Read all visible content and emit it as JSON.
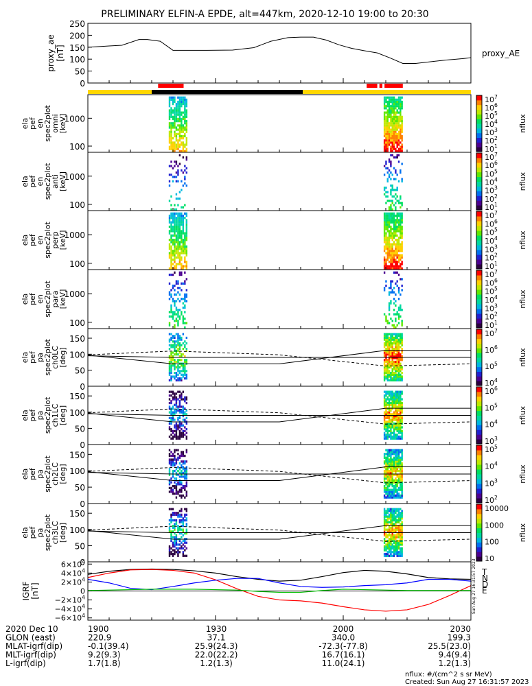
{
  "title": "PRELIMINARY ELFIN-A EPDE, alt=447km, 2020-12-10 19:00 to 20:30",
  "footer": {
    "units": "nflux: #/(cm^2 s sr MeV)",
    "created": "Created: Sun Aug 27 16:31:57 2023",
    "stamp": "Sun Aug 27 16:31:57 2023"
  },
  "colors": {
    "sunlit_bar": "#ffd700",
    "shadow_bar": "#000000",
    "science_zone": "#ff0000",
    "igrf_T": "#000000",
    "igrf_N": "#ff0000",
    "igrf_D": "#0000ff",
    "igrf_E": "#00c000"
  },
  "colorbar_stops": [
    "#2b0040",
    "#4b0090",
    "#2020d0",
    "#0070f0",
    "#00b8e0",
    "#00d8a0",
    "#00e060",
    "#60e800",
    "#c0e800",
    "#ffd000",
    "#ff8000",
    "#ff0000"
  ],
  "time_axis": {
    "tick_labels": [
      "1900",
      "1930",
      "2000",
      "2030"
    ],
    "range_minutes": [
      0,
      90
    ]
  },
  "ephemeris": {
    "rows": [
      {
        "label": "2020 Dec 10",
        "values": [
          "1900",
          "1930",
          "2000",
          "2030"
        ]
      },
      {
        "label": "GLON (east)",
        "values": [
          "220.9",
          "37.1",
          "340.0",
          "199.3"
        ]
      },
      {
        "label": "MLAT-igrf(dip)",
        "values": [
          "-0.1(39.4)",
          "25.9(24.3)",
          "-72.3(-77.8)",
          "25.5(23.0)"
        ]
      },
      {
        "label": "MLT-igrf(dip)",
        "values": [
          "9.2(9.3)",
          "22.0(22.2)",
          "16.7(16.1)",
          "9.4(9.4)"
        ]
      },
      {
        "label": "L-igrf(dip)",
        "values": [
          "1.7(1.8)",
          "1.2(1.3)",
          "11.0(24.1)",
          "1.2(1.3)"
        ]
      }
    ]
  },
  "chart_data": [
    {
      "type": "line",
      "panel": "proxy_ae",
      "ylabel": [
        "proxy_ae",
        "[nT]"
      ],
      "legend": "proxy_AE",
      "yticks": [
        "250",
        "200",
        "150",
        "100",
        "50",
        "0"
      ],
      "ylim": [
        0,
        250
      ],
      "x": [
        0,
        2,
        5,
        8,
        12,
        14,
        17,
        20,
        23,
        28,
        34,
        39,
        43,
        47,
        50,
        53,
        56,
        59,
        62,
        65,
        68,
        71,
        74,
        77,
        80,
        84,
        88,
        90
      ],
      "y": [
        150,
        152,
        155,
        158,
        182,
        182,
        175,
        137,
        137,
        137,
        138,
        148,
        175,
        190,
        192,
        192,
        180,
        160,
        145,
        135,
        126,
        105,
        82,
        82,
        88,
        96,
        102,
        106
      ]
    },
    {
      "type": "heatmap",
      "panel": "omni",
      "ylabel": [
        "ela",
        "pef",
        "en",
        "spec2plot",
        "omni",
        "[keV]"
      ],
      "yticks": [
        "1000",
        "100"
      ],
      "ylim_log": [
        60,
        7000
      ],
      "colorbar": {
        "label": "nflux",
        "ticks": [
          "10^7",
          "10^6",
          "10^5",
          "10^4",
          "10^3",
          "10^2",
          "10^1"
        ],
        "range_log": [
          1,
          7
        ]
      },
      "bursts": [
        {
          "t": [
            19.0,
            23.4
          ],
          "max_log": 6.0,
          "density": 0.75
        },
        {
          "t": [
            69.5,
            74.0
          ],
          "max_log": 6.8,
          "density": 0.85
        }
      ]
    },
    {
      "type": "heatmap",
      "panel": "anti",
      "ylabel": [
        "ela",
        "pef",
        "en",
        "spec2plot",
        "anti",
        "[keV]"
      ],
      "yticks": [
        "1000",
        "100"
      ],
      "ylim_log": [
        60,
        7000
      ],
      "colorbar": {
        "label": "nflux",
        "ticks": [
          "10^7",
          "10^6",
          "10^5",
          "10^4",
          "10^3",
          "10^2",
          "10^1"
        ],
        "range_log": [
          1,
          7
        ]
      },
      "bursts": [
        {
          "t": [
            19.0,
            23.4
          ],
          "max_log": 4.2,
          "density": 0.22
        },
        {
          "t": [
            69.5,
            74.0
          ],
          "max_log": 4.6,
          "density": 0.28
        }
      ]
    },
    {
      "type": "heatmap",
      "panel": "perp",
      "ylabel": [
        "ela",
        "pef",
        "en",
        "spec2plot",
        "perp",
        "[keV]"
      ],
      "yticks": [
        "1000",
        "100"
      ],
      "ylim_log": [
        60,
        7000
      ],
      "colorbar": {
        "label": "nflux",
        "ticks": [
          "10^7",
          "10^6",
          "10^5",
          "10^4",
          "10^3",
          "10^2",
          "10^1"
        ],
        "range_log": [
          1,
          7
        ]
      },
      "bursts": [
        {
          "t": [
            19.0,
            23.4
          ],
          "max_log": 6.0,
          "density": 0.75
        },
        {
          "t": [
            69.5,
            74.0
          ],
          "max_log": 6.8,
          "density": 0.85
        }
      ]
    },
    {
      "type": "heatmap",
      "panel": "para",
      "ylabel": [
        "ela",
        "pef",
        "en",
        "spec2plot",
        "para",
        "[keV]"
      ],
      "yticks": [
        "1000",
        "100"
      ],
      "ylim_log": [
        60,
        7000
      ],
      "colorbar": {
        "label": "nflux",
        "ticks": [
          "10^7",
          "10^6",
          "10^5",
          "10^4",
          "10^3",
          "10^2",
          "10^1"
        ],
        "range_log": [
          1,
          7
        ]
      },
      "bursts": [
        {
          "t": [
            19.0,
            23.4
          ],
          "max_log": 4.6,
          "density": 0.35
        },
        {
          "t": [
            69.5,
            74.0
          ],
          "max_log": 4.8,
          "density": 0.3
        }
      ]
    },
    {
      "type": "heatmap",
      "panel": "ch0LC",
      "ylabel": [
        "ela",
        "pef",
        "pa",
        "spec2plot",
        "ch0LC",
        "[deg]"
      ],
      "yticks": [
        "150",
        "100",
        "50",
        "0"
      ],
      "ylim": [
        0,
        180
      ],
      "colorbar": {
        "label": "nflux",
        "ticks": [
          "10^7",
          "10^6",
          "10^5",
          "10^4"
        ],
        "range_log": [
          3.5,
          7
        ]
      },
      "bursts": [
        {
          "t": [
            19.0,
            23.4
          ],
          "max_log": 6.0,
          "density": 0.55
        },
        {
          "t": [
            69.5,
            74.0
          ],
          "max_log": 6.8,
          "density": 0.85
        }
      ]
    },
    {
      "type": "heatmap",
      "panel": "ch1LC",
      "ylabel": [
        "ela",
        "pef",
        "pa",
        "spec2plot",
        "ch1LC",
        "[deg]"
      ],
      "yticks": [
        "150",
        "100",
        "50",
        "0"
      ],
      "ylim": [
        0,
        180
      ],
      "colorbar": {
        "label": "nflux",
        "ticks": [
          "10^6",
          "10^5",
          "10^4",
          "10^3"
        ],
        "range_log": [
          2.8,
          6
        ]
      },
      "bursts": [
        {
          "t": [
            19.0,
            23.4
          ],
          "max_log": 4.2,
          "density": 0.55
        },
        {
          "t": [
            69.5,
            74.0
          ],
          "max_log": 5.6,
          "density": 0.85
        }
      ]
    },
    {
      "type": "heatmap",
      "panel": "ch2LC",
      "ylabel": [
        "ela",
        "pef",
        "pa",
        "spec2plot",
        "ch2LC",
        "[deg]"
      ],
      "yticks": [
        "150",
        "100",
        "50",
        "0"
      ],
      "ylim": [
        0,
        180
      ],
      "colorbar": {
        "label": "nflux",
        "ticks": [
          "10^5",
          "10^4",
          "10^3",
          "10^2"
        ],
        "range_log": [
          1.8,
          5
        ]
      },
      "bursts": [
        {
          "t": [
            19.0,
            23.4
          ],
          "max_log": 3.2,
          "density": 0.55
        },
        {
          "t": [
            69.5,
            74.0
          ],
          "max_log": 4.4,
          "density": 0.85
        }
      ]
    },
    {
      "type": "heatmap",
      "panel": "ch3LC",
      "ylabel": [
        "ela",
        "pef",
        "pa",
        "spec2plot",
        "ch3LC",
        "[deg]"
      ],
      "yticks": [
        "150",
        "100",
        "50",
        "0"
      ],
      "ylim": [
        0,
        180
      ],
      "colorbar": {
        "label": "nflux",
        "ticks": [
          "10000",
          "1000",
          "100",
          "10"
        ],
        "range_log": [
          1,
          4
        ]
      },
      "bursts": [
        {
          "t": [
            19.0,
            23.4
          ],
          "max_log": 2.6,
          "density": 0.55
        },
        {
          "t": [
            69.5,
            74.0
          ],
          "max_log": 3.6,
          "density": 0.85
        }
      ]
    },
    {
      "type": "line",
      "panel": "igrf",
      "ylabel": [
        "IGRF",
        "[nT]"
      ],
      "yticks": [
        "6×10^4",
        "4×10^4",
        "2×10^4",
        "0",
        "−2×10^4",
        "−4×10^4",
        "−6×10^4"
      ],
      "ylim": [
        -65000,
        65000
      ],
      "legend": [
        "T",
        "N",
        "D",
        "E"
      ],
      "series": [
        {
          "name": "T",
          "x": [
            0,
            5,
            10,
            15,
            20,
            25,
            30,
            35,
            40,
            45,
            50,
            55,
            60,
            65,
            70,
            75,
            80,
            85,
            90
          ],
          "y": [
            37000,
            44000,
            48000,
            49000,
            48000,
            45000,
            40000,
            32000,
            26000,
            22000,
            24000,
            32000,
            41000,
            46000,
            44000,
            38000,
            30000,
            27000,
            26000
          ]
        },
        {
          "name": "N",
          "x": [
            0,
            5,
            10,
            15,
            20,
            25,
            30,
            35,
            40,
            45,
            50,
            55,
            60,
            65,
            70,
            75,
            80,
            85,
            90
          ],
          "y": [
            30000,
            40000,
            47000,
            48000,
            46000,
            40000,
            25000,
            5000,
            -12000,
            -20000,
            -22000,
            -27000,
            -35000,
            -42000,
            -45000,
            -42000,
            -30000,
            -10000,
            12000
          ]
        },
        {
          "name": "D",
          "x": [
            0,
            5,
            10,
            15,
            20,
            25,
            30,
            35,
            40,
            45,
            50,
            55,
            60,
            65,
            70,
            75,
            80,
            85,
            90
          ],
          "y": [
            26000,
            18000,
            6000,
            3000,
            10000,
            18000,
            24000,
            28000,
            28000,
            18000,
            10000,
            8000,
            9000,
            12000,
            14000,
            18000,
            26000,
            26000,
            22000
          ]
        },
        {
          "name": "E",
          "x": [
            0,
            5,
            10,
            15,
            20,
            25,
            30,
            35,
            40,
            45,
            50,
            55,
            60,
            65,
            70,
            75,
            80,
            85,
            90
          ],
          "y": [
            1000,
            2000,
            3000,
            4000,
            4000,
            4000,
            3000,
            2000,
            -1000,
            -3000,
            -3000,
            1000,
            4000,
            3000,
            2000,
            1000,
            1000,
            1000,
            1000
          ]
        }
      ]
    }
  ],
  "orbit_bar": {
    "segments": [
      {
        "t": [
          0,
          15
        ],
        "state": "sunlit"
      },
      {
        "t": [
          15,
          50.5
        ],
        "state": "shadow"
      },
      {
        "t": [
          50.5,
          90
        ],
        "state": "sunlit"
      }
    ],
    "science_zones": [
      [
        16.5,
        22.5
      ],
      [
        65.5,
        68.0
      ],
      [
        68.5,
        69.2
      ],
      [
        69.7,
        74.0
      ]
    ]
  }
}
